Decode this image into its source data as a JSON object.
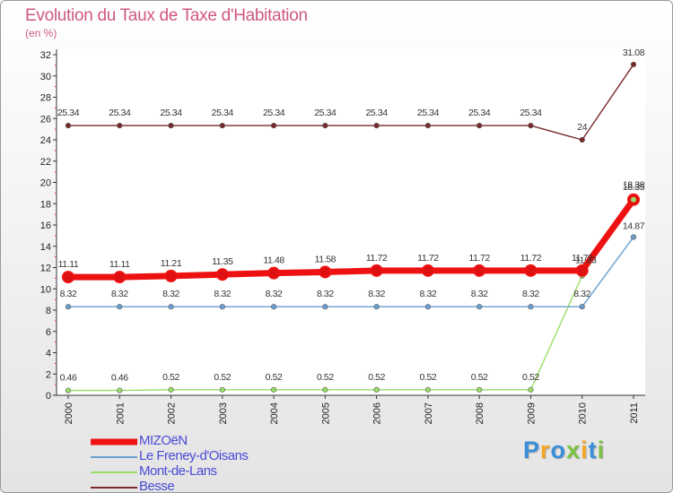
{
  "title": "Evolution du Taux de Taxe d'Habitation",
  "unit_label": "(en %)",
  "logo": {
    "text": "Proxiti",
    "letter_colors": [
      "#3a8fd8",
      "#f5a623",
      "#3a8fd8",
      "#7bc142",
      "#f5a623",
      "#3a8fd8",
      "#7bc142"
    ]
  },
  "chart_data": {
    "type": "line",
    "title": "Evolution du Taux de Taxe d'Habitation",
    "ylabel": "(en %)",
    "xlabel": "",
    "categories": [
      "2000",
      "2001",
      "2002",
      "2003",
      "2004",
      "2005",
      "2006",
      "2007",
      "2008",
      "2009",
      "2010",
      "2011"
    ],
    "ylim": [
      0,
      32
    ],
    "yticks": [
      0,
      2,
      4,
      6,
      8,
      10,
      12,
      14,
      16,
      18,
      20,
      22,
      24,
      26,
      28,
      30,
      32
    ],
    "grid": false,
    "legend_position": "bottom-left",
    "series": [
      {
        "name": "MIZOëN",
        "color": "#ee1111",
        "values": [
          11.11,
          11.11,
          11.21,
          11.35,
          11.48,
          11.58,
          11.72,
          11.72,
          11.72,
          11.72,
          11.72,
          18.38
        ],
        "labels": [
          "11.11",
          "11.11",
          "11.21",
          "11.35",
          "11.48",
          "11.58",
          "11.72",
          "11.72",
          "11.72",
          "11.72",
          "11.72",
          "18.38"
        ]
      },
      {
        "name": "Le Freney-d'Oisans",
        "color": "#6a9fd0",
        "values": [
          8.32,
          8.32,
          8.32,
          8.32,
          8.32,
          8.32,
          8.32,
          8.32,
          8.32,
          8.32,
          8.32,
          14.87
        ],
        "labels": [
          "8.32",
          "8.32",
          "8.32",
          "8.32",
          "8.32",
          "8.32",
          "8.32",
          "8.32",
          "8.32",
          "8.32",
          "8.32",
          "14.87"
        ]
      },
      {
        "name": "Mont-de-Lans",
        "color": "#99dd66",
        "values": [
          0.46,
          0.46,
          0.52,
          0.52,
          0.52,
          0.52,
          0.52,
          0.52,
          0.52,
          0.52,
          11.23,
          18.35
        ],
        "labels": [
          "0.46",
          "0.46",
          "0.52",
          "0.52",
          "0.52",
          "0.52",
          "0.52",
          "0.52",
          "0.52",
          "0.52",
          "11.23",
          "18.35"
        ]
      },
      {
        "name": "Besse",
        "color": "#7a2a2a",
        "values": [
          25.34,
          25.34,
          25.34,
          25.34,
          25.34,
          25.34,
          25.34,
          25.34,
          25.34,
          25.34,
          24,
          31.08
        ],
        "labels": [
          "25.34",
          "25.34",
          "25.34",
          "25.34",
          "25.34",
          "25.34",
          "25.34",
          "25.34",
          "25.34",
          "25.34",
          "24",
          "31.08"
        ]
      }
    ]
  }
}
